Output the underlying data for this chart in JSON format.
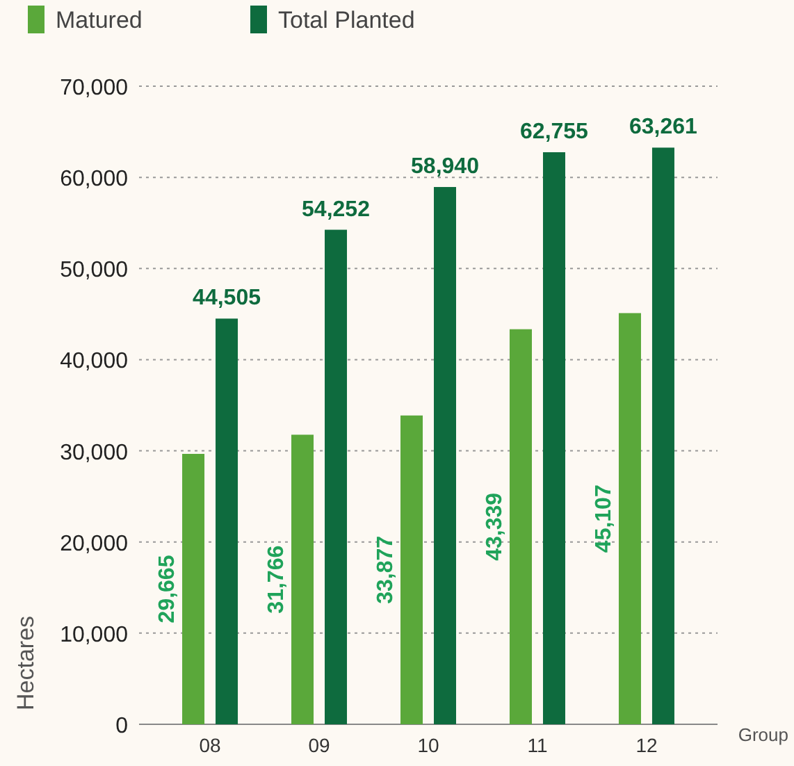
{
  "chart_data": {
    "type": "bar",
    "categories": [
      "08",
      "09",
      "10",
      "11",
      "12"
    ],
    "series": [
      {
        "name": "Matured",
        "color": "#5aa83a",
        "values": [
          29665,
          31766,
          33877,
          43339,
          45107
        ],
        "value_labels": [
          "29,665",
          "31,766",
          "33,877",
          "43,339",
          "45,107"
        ]
      },
      {
        "name": "Total Planted",
        "color": "#0e6b3e",
        "values": [
          44505,
          54252,
          58940,
          62755,
          63261
        ],
        "value_labels": [
          "44,505",
          "54,252",
          "58,940",
          "62,755",
          "63,261"
        ]
      }
    ],
    "ylim": [
      0,
      70000
    ],
    "yticks": [
      {
        "value": 0,
        "label": "0"
      },
      {
        "value": 10000,
        "label": "10,000"
      },
      {
        "value": 20000,
        "label": "20,000"
      },
      {
        "value": 30000,
        "label": "30,000"
      },
      {
        "value": 40000,
        "label": "40,000"
      },
      {
        "value": 50000,
        "label": "50,000"
      },
      {
        "value": 60000,
        "label": "60,000"
      },
      {
        "value": 70000,
        "label": "70,000"
      }
    ],
    "xlabel": "Group",
    "ylabel": "Hectares",
    "grid": "y",
    "legend": "top left"
  }
}
